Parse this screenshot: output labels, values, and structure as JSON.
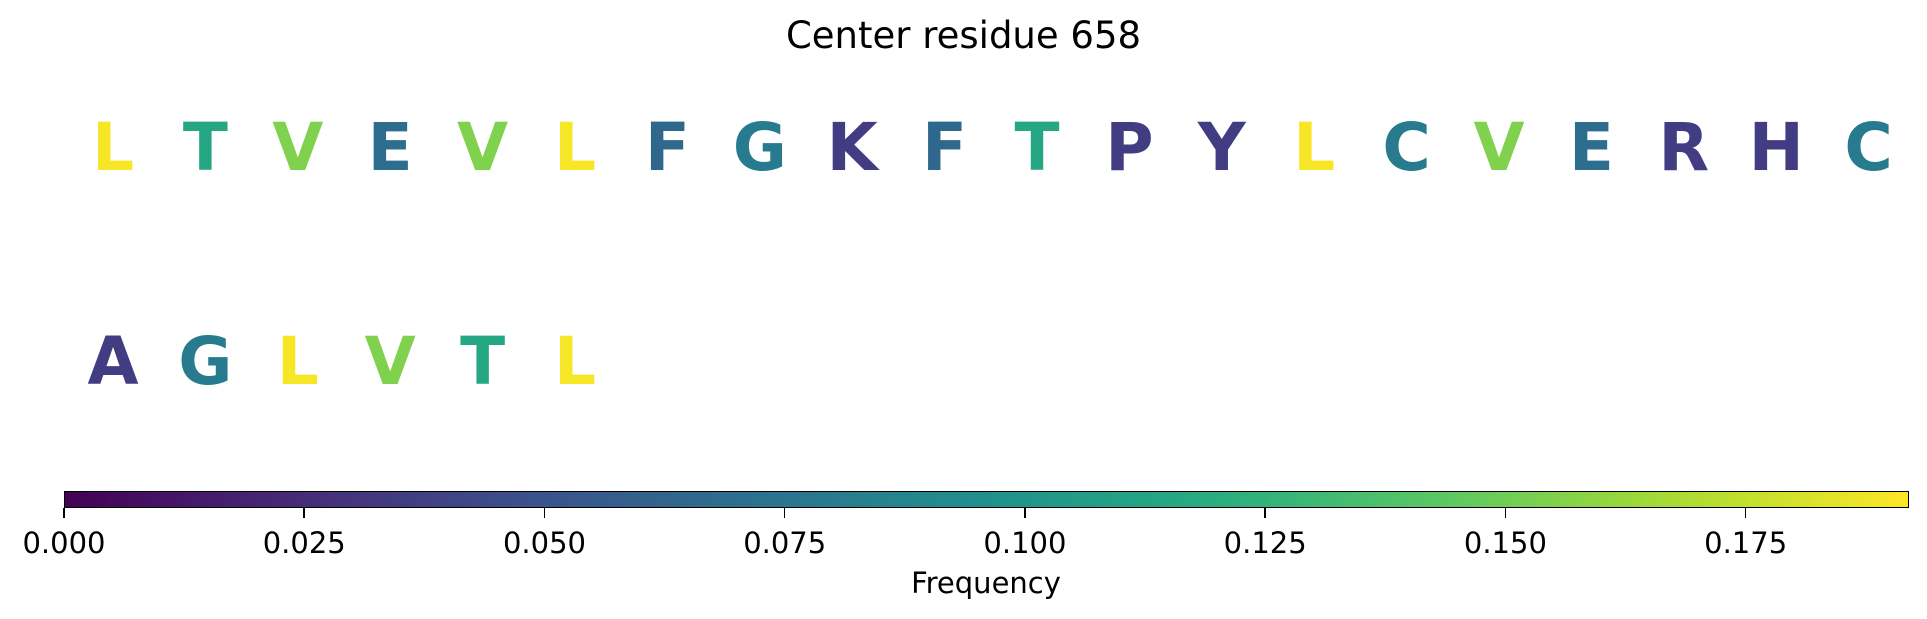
{
  "chart_data": {
    "type": "sequence-logo",
    "title": "Center residue 658",
    "colormap": "viridis",
    "colorbar": {
      "label": "Frequency",
      "range": [
        0,
        0.192
      ],
      "ticks": [
        0.0,
        0.025,
        0.05,
        0.075,
        0.1,
        0.125,
        0.15,
        0.175
      ],
      "tick_labels": [
        "0.000",
        "0.025",
        "0.050",
        "0.075",
        "0.100",
        "0.125",
        "0.150",
        "0.175"
      ]
    },
    "rows": [
      {
        "residues": [
          {
            "letter": "L",
            "frequency": 0.19
          },
          {
            "letter": "T",
            "frequency": 0.115
          },
          {
            "letter": "V",
            "frequency": 0.155
          },
          {
            "letter": "E",
            "frequency": 0.07
          },
          {
            "letter": "V",
            "frequency": 0.155
          },
          {
            "letter": "L",
            "frequency": 0.19
          },
          {
            "letter": "F",
            "frequency": 0.065
          },
          {
            "letter": "G",
            "frequency": 0.08
          },
          {
            "letter": "K",
            "frequency": 0.035
          },
          {
            "letter": "F",
            "frequency": 0.065
          },
          {
            "letter": "T",
            "frequency": 0.115
          },
          {
            "letter": "P",
            "frequency": 0.035
          },
          {
            "letter": "Y",
            "frequency": 0.035
          },
          {
            "letter": "L",
            "frequency": 0.19
          },
          {
            "letter": "C",
            "frequency": 0.08
          },
          {
            "letter": "V",
            "frequency": 0.155
          },
          {
            "letter": "E",
            "frequency": 0.07
          },
          {
            "letter": "R",
            "frequency": 0.035
          },
          {
            "letter": "H",
            "frequency": 0.035
          },
          {
            "letter": "C",
            "frequency": 0.08
          }
        ]
      },
      {
        "residues": [
          {
            "letter": "A",
            "frequency": 0.035
          },
          {
            "letter": "G",
            "frequency": 0.08
          },
          {
            "letter": "L",
            "frequency": 0.19
          },
          {
            "letter": "V",
            "frequency": 0.155
          },
          {
            "letter": "T",
            "frequency": 0.115
          },
          {
            "letter": "L",
            "frequency": 0.19
          }
        ]
      }
    ]
  }
}
